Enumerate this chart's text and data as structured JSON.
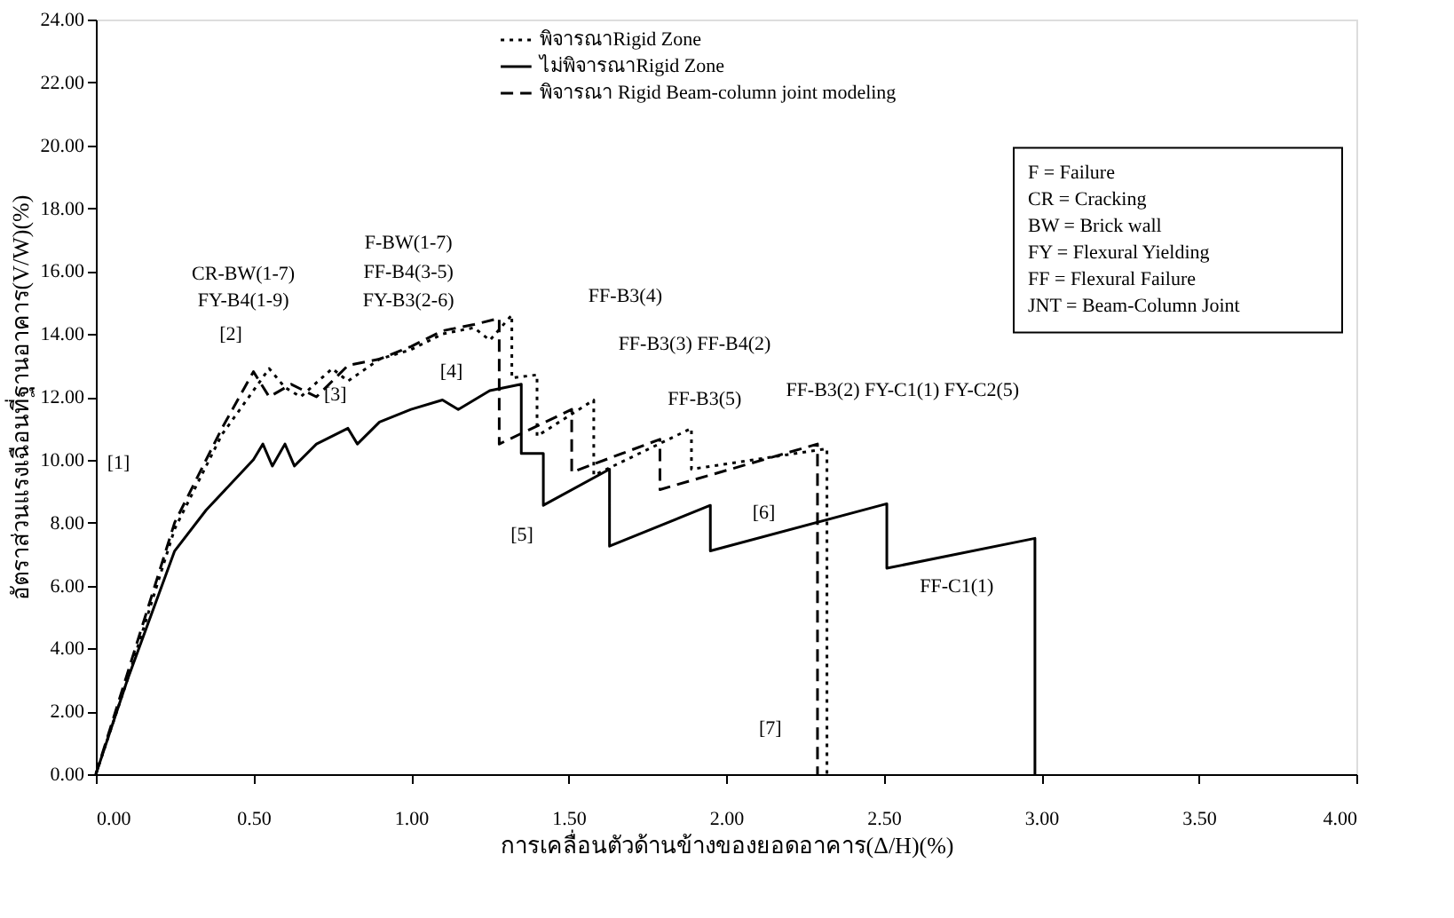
{
  "chart_data": {
    "type": "line",
    "xlabel": "การเคลื่อนตัวด้านข้างของยอดอาคาร(Δ/H)(%)",
    "ylabel": "อัตราส่วนแรงเฉือนที่ฐานอาคาร(V/W)(%)",
    "xlim": [
      0,
      4
    ],
    "xticks": [
      {
        "value": 0,
        "label": "0.00"
      },
      {
        "value": 0.5,
        "label": "0.50"
      },
      {
        "value": 1,
        "label": "1.00"
      },
      {
        "value": 1.5,
        "label": "1.50"
      },
      {
        "value": 2,
        "label": "2.00"
      },
      {
        "value": 2.5,
        "label": "2.50"
      },
      {
        "value": 3,
        "label": "3.00"
      },
      {
        "value": 3.5,
        "label": "3.50"
      },
      {
        "value": 4,
        "label": "4.00"
      }
    ],
    "ylim": [
      0,
      24
    ],
    "yticks": [
      {
        "value": 0,
        "label": "0.00"
      },
      {
        "value": 2,
        "label": "2.00"
      },
      {
        "value": 4,
        "label": "4.00"
      },
      {
        "value": 6,
        "label": "6.00"
      },
      {
        "value": 8,
        "label": "8.00"
      },
      {
        "value": 10,
        "label": "10.00"
      },
      {
        "value": 12,
        "label": "12.00"
      },
      {
        "value": 14,
        "label": "14.00"
      },
      {
        "value": 16,
        "label": "16.00"
      },
      {
        "value": 18,
        "label": "18.00"
      },
      {
        "value": 20,
        "label": "20.00"
      },
      {
        "value": 22,
        "label": "22.00"
      },
      {
        "value": 24,
        "label": "24.00"
      }
    ],
    "grid": false,
    "legend": "top",
    "marker": "none",
    "series": [
      {
        "name": "พิจารณาRigid Zone",
        "color": "#000000",
        "line_style": "dotted",
        "x": [
          0,
          0.1,
          0.25,
          0.4,
          0.55,
          0.6,
          0.65,
          0.75,
          0.8,
          0.9,
          1.0,
          1.1,
          1.2,
          1.25,
          1.32,
          1.32,
          1.4,
          1.4,
          1.58,
          1.58,
          1.89,
          1.89,
          2.32,
          2.32
        ],
        "values": [
          0,
          3.0,
          7.8,
          10.8,
          12.9,
          12.3,
          12.0,
          12.9,
          12.5,
          13.2,
          13.5,
          14.0,
          14.2,
          13.8,
          14.6,
          12.6,
          12.7,
          10.75,
          11.9,
          9.5,
          11.0,
          9.7,
          10.35,
          0
        ]
      },
      {
        "name": "ไม่พิจารณาRigid Zone",
        "color": "#000000",
        "line_style": "solid",
        "x": [
          0,
          0.1,
          0.25,
          0.35,
          0.5,
          0.53,
          0.56,
          0.6,
          0.63,
          0.7,
          0.8,
          0.83,
          0.9,
          1.0,
          1.1,
          1.15,
          1.25,
          1.35,
          1.35,
          1.42,
          1.42,
          1.63,
          1.63,
          1.95,
          1.95,
          2.51,
          2.51,
          2.98,
          2.98
        ],
        "values": [
          0,
          3.0,
          7.1,
          8.4,
          10.0,
          10.5,
          9.8,
          10.5,
          9.8,
          10.5,
          11.0,
          10.5,
          11.2,
          11.6,
          11.9,
          11.6,
          12.2,
          12.4,
          10.2,
          10.2,
          8.55,
          9.7,
          7.25,
          8.55,
          7.1,
          8.6,
          6.55,
          7.5,
          0
        ]
      },
      {
        "name": "พิจารณา Rigid Beam-column joint modeling",
        "color": "#000000",
        "line_style": "dashed",
        "x": [
          0,
          0.1,
          0.25,
          0.4,
          0.5,
          0.55,
          0.62,
          0.7,
          0.8,
          0.9,
          1.0,
          1.1,
          1.2,
          1.28,
          1.28,
          1.51,
          1.51,
          1.79,
          1.79,
          2.29,
          2.29
        ],
        "values": [
          0,
          3.2,
          8.0,
          11.0,
          12.8,
          12.0,
          12.4,
          12.0,
          13.0,
          13.2,
          13.6,
          14.1,
          14.3,
          14.5,
          10.5,
          11.6,
          9.6,
          10.65,
          9.05,
          10.5,
          0
        ]
      }
    ],
    "annotations": [
      "CR-BW(1-7)",
      "FY-B4(1-9)",
      "F-BW(1-7)",
      "FF-B4(3-5)",
      "FY-B3(2-6)",
      "[1]",
      "[2]",
      "[3]",
      "[4]",
      "FF-B3(4)",
      "FF-B3(3) FF-B4(2)",
      "FF-B3(5)",
      "FF-B3(2) FY-C1(1) FY-C2(5)",
      "[5]",
      "[6]",
      "FF-C1(1)",
      "[7]",
      "F      = Failure",
      "CR    = Cracking",
      "BW   = Brick wall",
      "FY    = Flexural Yielding",
      "FF    = Flexural Failure",
      "JNT  = Beam-Column Joint"
    ]
  }
}
